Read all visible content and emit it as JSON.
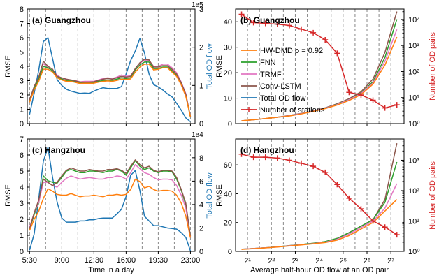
{
  "figure": {
    "xlabel_left": "Time in a day",
    "xlabel_right": "Average half-hour OD flow at an OD pair"
  },
  "colors": {
    "hwdmd": "#ff7f0e",
    "fnn": "#2ca02c",
    "trmf": "#e377c2",
    "convlstm": "#8c564b",
    "total": "#1f77b4",
    "stations": "#d62728"
  },
  "chart_data": [
    {
      "panel": "a",
      "type": "line",
      "title": "(a) Guangzhou",
      "ylabel": "RMSE",
      "ylim": [
        0,
        8
      ],
      "yticks": [
        "0",
        "1",
        "2",
        "3",
        "4",
        "5",
        "6",
        "7",
        "8"
      ],
      "y2label": "Total OD flow",
      "y2lim": [
        0,
        3
      ],
      "y2ticks": [
        "0",
        "1",
        "2",
        "3"
      ],
      "y2scale": "1e5",
      "xlim": [
        5.25,
        23.5
      ],
      "xticks": [
        5.5,
        9,
        12.5,
        16,
        19.5,
        23
      ],
      "xticklabels": [
        "5:30",
        "9:00",
        "12:30",
        "16:00",
        "19:30",
        "23:00"
      ],
      "vlines": [
        5.5,
        7.25,
        9,
        10.75,
        12.5,
        14.25,
        16,
        17.75,
        19.5,
        21.25,
        23
      ],
      "x": [
        5.5,
        6,
        6.5,
        7,
        7.5,
        8,
        8.5,
        9,
        9.5,
        10,
        10.5,
        11,
        11.5,
        12,
        12.5,
        13,
        13.5,
        14,
        14.5,
        15,
        15.5,
        16,
        16.5,
        17,
        17.5,
        18,
        18.5,
        19,
        19.5,
        20,
        20.5,
        21,
        21.5,
        22,
        22.5,
        23
      ],
      "series": [
        {
          "name": "Total OD flow",
          "axis": "right",
          "color_key": "total",
          "values": [
            0.24,
            0.8,
            1.4,
            2.15,
            2.25,
            1.7,
            1.15,
            1.0,
            0.9,
            0.85,
            0.82,
            0.79,
            0.8,
            0.79,
            0.85,
            0.9,
            0.94,
            0.92,
            0.92,
            0.92,
            0.97,
            1.3,
            1.65,
            1.9,
            2.23,
            1.85,
            1.3,
            1.02,
            0.96,
            0.88,
            0.78,
            0.7,
            0.53,
            0.35,
            0.15,
            0.05
          ]
        },
        {
          "name": "TRMF",
          "axis": "left",
          "color_key": "trmf",
          "values": [
            1.6,
            2.5,
            3.2,
            4.2,
            3.9,
            3.7,
            3.4,
            3.15,
            3.1,
            3.05,
            3.0,
            2.92,
            2.95,
            2.95,
            2.95,
            3.05,
            3.15,
            3.2,
            3.15,
            3.25,
            3.4,
            3.3,
            3.35,
            3.8,
            4.2,
            4.45,
            4.4,
            4.0,
            4.0,
            4.15,
            4.15,
            3.9,
            3.55,
            2.9,
            2.1,
            0.5
          ]
        },
        {
          "name": "FNN",
          "axis": "left",
          "color_key": "fnn",
          "values": [
            1.55,
            2.45,
            3.1,
            4.0,
            3.9,
            3.7,
            3.3,
            3.1,
            3.0,
            3.0,
            2.92,
            2.85,
            2.85,
            2.85,
            2.88,
            2.95,
            3.0,
            3.05,
            3.02,
            3.1,
            3.2,
            3.15,
            3.2,
            3.75,
            4.1,
            4.3,
            4.3,
            3.85,
            3.85,
            3.95,
            3.95,
            3.7,
            3.35,
            2.75,
            1.95,
            0.45
          ]
        },
        {
          "name": "Conv-LSTM",
          "axis": "left",
          "color_key": "convlstm",
          "values": [
            1.65,
            2.6,
            3.25,
            4.35,
            4.0,
            3.8,
            3.3,
            3.2,
            3.1,
            3.05,
            2.98,
            2.9,
            2.9,
            2.9,
            2.92,
            3.02,
            3.1,
            3.15,
            3.1,
            3.2,
            3.3,
            3.25,
            3.3,
            3.85,
            4.25,
            4.5,
            4.45,
            3.95,
            3.95,
            4.05,
            4.05,
            3.8,
            3.45,
            2.85,
            2.05,
            0.5
          ]
        },
        {
          "name": "HW-DMD",
          "axis": "left",
          "color_key": "hwdmd",
          "values": [
            1.5,
            2.35,
            2.95,
            3.8,
            3.8,
            3.6,
            3.2,
            3.05,
            2.95,
            2.95,
            2.88,
            2.8,
            2.82,
            2.82,
            2.82,
            2.9,
            2.95,
            2.98,
            2.95,
            3.02,
            3.1,
            3.08,
            3.12,
            3.6,
            3.95,
            4.15,
            4.15,
            3.75,
            3.8,
            3.9,
            3.9,
            3.6,
            3.3,
            2.7,
            1.9,
            0.5
          ]
        }
      ]
    },
    {
      "panel": "b",
      "type": "line",
      "title": "(b) Guangzhou",
      "ylabel": "RMSE",
      "ylim": [
        0,
        45
      ],
      "yticks": [
        "0",
        "10",
        "20",
        "30",
        "40"
      ],
      "y2label": "Number of OD pairs",
      "y2log": [
        0,
        4.4
      ],
      "y2ticklabels": [
        "10⁰",
        "10¹",
        "10²",
        "10³",
        "10⁴"
      ],
      "xlog2": [
        0.5,
        7.55
      ],
      "xticklabels": [
        "2¹",
        "2²",
        "2³",
        "2⁴",
        "2⁵",
        "2⁶",
        "2⁷"
      ],
      "vlines_log2": [
        1,
        1.5,
        2,
        2.5,
        3,
        3.5,
        4,
        4.5,
        5,
        5.5,
        6,
        6.5,
        7
      ],
      "legend": [
        "HW-DMD ρ = 0.92",
        "FNN",
        "TRMF",
        "Conv-LSTM",
        "Total OD flow",
        "Number of stations"
      ],
      "x_log2": [
        0.75,
        1.25,
        1.75,
        2.25,
        2.75,
        3.25,
        3.75,
        4.25,
        4.75,
        5.25,
        5.75,
        6.25,
        6.75,
        7.25
      ],
      "series": [
        {
          "name": "Conv-LSTM",
          "color_key": "convlstm",
          "values": [
            1.1,
            1.5,
            2.0,
            2.5,
            3.2,
            4.0,
            5.0,
            6.2,
            7.8,
            9.8,
            12.5,
            17.5,
            28,
            44
          ]
        },
        {
          "name": "FNN",
          "color_key": "fnn",
          "values": [
            1.1,
            1.5,
            2.0,
            2.5,
            3.1,
            3.9,
            4.9,
            6.0,
            7.6,
            9.5,
            12.0,
            16.5,
            26,
            41
          ]
        },
        {
          "name": "TRMF",
          "color_key": "trmf",
          "values": [
            1.1,
            1.5,
            2.0,
            2.5,
            3.1,
            3.9,
            4.9,
            6.0,
            7.5,
            9.4,
            11.8,
            16,
            24.5,
            37
          ]
        },
        {
          "name": "HW-DMD",
          "color_key": "hwdmd",
          "values": [
            1.1,
            1.5,
            2.0,
            2.5,
            3.0,
            3.8,
            4.8,
            5.9,
            7.3,
            9.1,
            11.4,
            15.5,
            23,
            34
          ]
        }
      ],
      "stations": {
        "name": "Number of stations",
        "color_key": "stations",
        "log10": [
          4.2,
          3.88,
          3.85,
          3.82,
          3.77,
          3.63,
          3.49,
          3.22,
          2.7,
          1.2,
          1.1,
          0.9,
          0.6,
          0.72
        ]
      }
    },
    {
      "panel": "c",
      "type": "line",
      "title": "(c) Hangzhou",
      "ylabel": "RMSE",
      "ylim": [
        0,
        7
      ],
      "yticks": [
        "0",
        "1",
        "2",
        "3",
        "4",
        "5",
        "6",
        "7"
      ],
      "y2label": "Total OD flow",
      "y2lim": [
        0,
        9.6
      ],
      "y2ticks": [
        "0",
        "2",
        "4",
        "6",
        "8"
      ],
      "y2scale": "1e4",
      "xlim": [
        5.25,
        23.5
      ],
      "xticks": [
        5.5,
        9,
        12.5,
        16,
        19.5,
        23
      ],
      "xticklabels": [
        "5:30",
        "9:00",
        "12:30",
        "16:00",
        "19:30",
        "23:00"
      ],
      "vlines": [
        5.5,
        7.25,
        9,
        10.75,
        12.5,
        14.25,
        16,
        17.75,
        19.5,
        21.25,
        23
      ],
      "x": [
        5.5,
        6,
        6.5,
        7,
        7.5,
        8,
        8.5,
        9,
        9.5,
        10,
        10.5,
        11,
        11.5,
        12,
        12.5,
        13,
        13.5,
        14,
        14.5,
        15,
        15.5,
        16,
        16.5,
        17,
        17.5,
        18,
        18.5,
        19,
        19.5,
        20,
        20.5,
        21,
        21.5,
        22,
        22.5,
        23
      ],
      "series": [
        {
          "name": "Total OD flow",
          "axis": "right",
          "color_key": "total",
          "values": [
            0.1,
            1.5,
            4.5,
            7.7,
            8.9,
            6.3,
            4.2,
            2.85,
            2.5,
            2.5,
            2.5,
            2.6,
            2.6,
            2.7,
            2.7,
            2.8,
            2.85,
            2.85,
            2.85,
            3.2,
            3.6,
            4.7,
            6.5,
            6.9,
            5.2,
            3.0,
            2.6,
            2.2,
            2.2,
            2.1,
            2.0,
            1.95,
            1.9,
            1.6,
            1.2,
            0.05
          ]
        },
        {
          "name": "FNN",
          "axis": "left",
          "color_key": "fnn",
          "values": [
            1.4,
            2.3,
            3.0,
            4.7,
            4.4,
            4.3,
            4.25,
            4.6,
            5.0,
            5.1,
            5.0,
            4.9,
            4.9,
            5.0,
            5.0,
            4.95,
            4.9,
            5.0,
            5.0,
            5.1,
            5.0,
            4.75,
            5.2,
            5.65,
            5.3,
            5.1,
            5.2,
            5.0,
            4.9,
            5.0,
            5.0,
            4.95,
            4.5,
            3.8,
            2.9,
            0.9
          ]
        },
        {
          "name": "TRMF",
          "axis": "left",
          "color_key": "trmf",
          "values": [
            1.5,
            2.4,
            3.05,
            4.3,
            4.3,
            4.1,
            4.0,
            4.3,
            4.55,
            4.7,
            4.6,
            4.5,
            4.55,
            4.6,
            4.55,
            4.5,
            4.5,
            4.6,
            4.6,
            4.7,
            4.65,
            4.5,
            4.9,
            5.4,
            5.15,
            4.9,
            4.8,
            4.6,
            4.45,
            4.5,
            4.5,
            4.45,
            4.1,
            3.5,
            2.7,
            0.85
          ]
        },
        {
          "name": "Conv-LSTM",
          "axis": "left",
          "color_key": "convlstm",
          "values": [
            1.4,
            2.4,
            3.2,
            4.5,
            4.3,
            4.1,
            4.3,
            4.7,
            5.05,
            5.2,
            5.1,
            5.0,
            5.0,
            5.1,
            5.05,
            5.0,
            5.0,
            5.1,
            5.1,
            5.15,
            5.05,
            4.85,
            5.3,
            5.7,
            5.4,
            5.2,
            5.3,
            5.05,
            4.95,
            5.05,
            5.05,
            5.0,
            4.6,
            3.85,
            3.0,
            0.95
          ]
        },
        {
          "name": "HW-DMD",
          "axis": "left",
          "color_key": "hwdmd",
          "values": [
            1.3,
            2.0,
            2.5,
            3.3,
            3.9,
            3.75,
            3.55,
            3.5,
            3.5,
            3.6,
            3.5,
            3.4,
            3.45,
            3.45,
            3.5,
            3.45,
            3.4,
            3.5,
            3.5,
            3.55,
            3.5,
            3.55,
            3.85,
            4.5,
            4.35,
            3.95,
            4.05,
            3.85,
            3.75,
            3.8,
            3.8,
            3.75,
            3.5,
            3.0,
            2.2,
            0.85
          ]
        }
      ]
    },
    {
      "panel": "d",
      "type": "line",
      "title": "(d) Hangzhou",
      "ylabel": "RMSE",
      "ylim": [
        0,
        78
      ],
      "yticks": [
        "0",
        "20",
        "40",
        "60"
      ],
      "y2label": "Number of OD pairs",
      "y2log": [
        0,
        3.7
      ],
      "y2ticklabels": [
        "10⁰",
        "10¹",
        "10²",
        "10³"
      ],
      "xlog2": [
        0.5,
        7.55
      ],
      "xticklabels": [
        "2¹",
        "2²",
        "2³",
        "2⁴",
        "2⁵",
        "2⁶",
        "2⁷"
      ],
      "vlines_log2": [
        1,
        1.5,
        2,
        2.5,
        3,
        3.5,
        4,
        4.5,
        5,
        5.5,
        6,
        6.5,
        7
      ],
      "x_log2": [
        0.75,
        1.25,
        1.75,
        2.25,
        2.75,
        3.25,
        3.75,
        4.25,
        4.75,
        5.25,
        5.75,
        6.25,
        6.75,
        7.25
      ],
      "series": [
        {
          "name": "Conv-LSTM",
          "color_key": "convlstm",
          "values": [
            1.5,
            2.0,
            2.5,
            3.2,
            4.0,
            4.8,
            5.6,
            6.8,
            9.0,
            13.0,
            17.5,
            22,
            36,
            75
          ]
        },
        {
          "name": "FNN",
          "color_key": "fnn",
          "values": [
            1.5,
            2.0,
            2.5,
            3.2,
            4.0,
            4.8,
            5.6,
            6.8,
            9.0,
            13.0,
            17.5,
            22,
            34,
            62
          ]
        },
        {
          "name": "TRMF",
          "color_key": "trmf",
          "values": [
            1.5,
            2.0,
            2.5,
            3.1,
            3.9,
            4.6,
            5.4,
            6.4,
            8.4,
            12.0,
            16.5,
            21,
            30,
            47
          ]
        },
        {
          "name": "HW-DMD",
          "color_key": "hwdmd",
          "values": [
            1.4,
            1.9,
            2.4,
            3.0,
            3.8,
            4.5,
            5.3,
            6.1,
            7.8,
            11.0,
            15.5,
            20,
            28,
            36
          ]
        }
      ],
      "stations": {
        "name": "Number of stations",
        "color_key": "stations",
        "log10": [
          3.2,
          3.1,
          3.1,
          3.07,
          3.0,
          2.9,
          2.8,
          2.6,
          2.2,
          1.75,
          1.4,
          1.0,
          0.8,
          0.55
        ]
      }
    }
  ]
}
